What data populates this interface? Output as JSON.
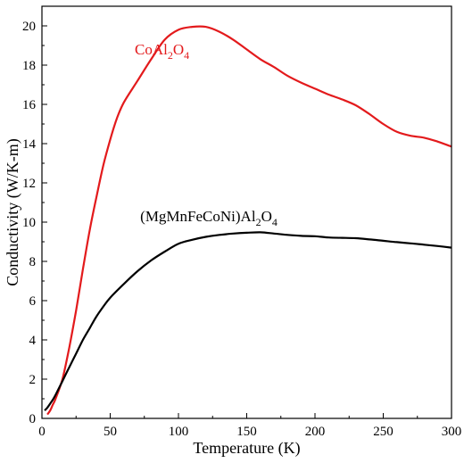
{
  "chart_data": {
    "type": "line",
    "xlabel": "Temperature (K)",
    "ylabel": "Conductivity (W/K-m)",
    "xlim": [
      0,
      300
    ],
    "ylim": [
      0,
      21
    ],
    "xticks": [
      0,
      50,
      100,
      150,
      200,
      250,
      300
    ],
    "yticks": [
      0,
      2,
      4,
      6,
      8,
      10,
      12,
      14,
      16,
      18,
      20
    ],
    "grid": false,
    "legend": "inline labels",
    "series": [
      {
        "name": "CoAl2O4",
        "label_parts": [
          "CoAl",
          "2",
          "O",
          "4"
        ],
        "color": "#e31a1c",
        "x": [
          4,
          6,
          8,
          10,
          15,
          20,
          25,
          30,
          35,
          40,
          45,
          50,
          55,
          60,
          70,
          80,
          90,
          100,
          110,
          120,
          130,
          140,
          150,
          160,
          170,
          180,
          190,
          200,
          210,
          220,
          230,
          240,
          250,
          260,
          270,
          280,
          290,
          300
        ],
        "y": [
          0.2,
          0.4,
          0.7,
          1.0,
          2.0,
          3.6,
          5.5,
          7.6,
          9.6,
          11.3,
          12.9,
          14.2,
          15.3,
          16.1,
          17.2,
          18.3,
          19.3,
          19.8,
          19.95,
          19.95,
          19.7,
          19.3,
          18.8,
          18.3,
          17.9,
          17.45,
          17.1,
          16.8,
          16.5,
          16.25,
          15.95,
          15.5,
          15.0,
          14.6,
          14.4,
          14.3,
          14.1,
          13.85
        ]
      },
      {
        "name": "(MgMnFeCoNi)Al2O4",
        "label_parts": [
          "(MgMnFeCoNi)Al",
          "2",
          "O",
          "4"
        ],
        "color": "#000000",
        "x": [
          2,
          4,
          6,
          8,
          10,
          15,
          20,
          25,
          30,
          35,
          40,
          45,
          50,
          60,
          70,
          80,
          90,
          100,
          110,
          120,
          130,
          140,
          150,
          160,
          170,
          180,
          190,
          200,
          210,
          220,
          230,
          240,
          250,
          260,
          270,
          280,
          290,
          300
        ],
        "y": [
          0.4,
          0.55,
          0.75,
          0.95,
          1.2,
          1.9,
          2.6,
          3.3,
          4.0,
          4.6,
          5.2,
          5.7,
          6.15,
          6.85,
          7.5,
          8.05,
          8.5,
          8.9,
          9.1,
          9.25,
          9.35,
          9.42,
          9.46,
          9.48,
          9.42,
          9.35,
          9.3,
          9.28,
          9.22,
          9.2,
          9.18,
          9.12,
          9.05,
          8.98,
          8.92,
          8.85,
          8.78,
          8.7
        ]
      }
    ]
  }
}
